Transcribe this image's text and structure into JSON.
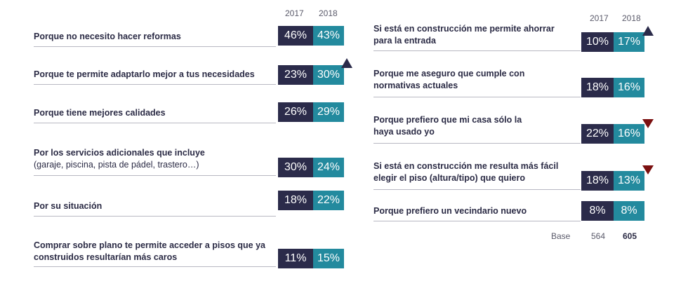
{
  "chart_data": [
    {
      "type": "table",
      "columns": [
        "2017",
        "2018"
      ],
      "rows": [
        {
          "label": "Porque no necesito hacer reformas",
          "sub": "",
          "v2017": "46%",
          "v2018": "43%",
          "trend": ""
        },
        {
          "label": "Porque te permite adaptarlo mejor a tus necesidades",
          "sub": "",
          "v2017": "23%",
          "v2018": "30%",
          "trend": "up"
        },
        {
          "label": "Porque tiene mejores calidades",
          "sub": "",
          "v2017": "26%",
          "v2018": "29%",
          "trend": ""
        },
        {
          "label": "Por los servicios adicionales que incluye",
          "sub": "(garaje, piscina, pista de pádel, trastero…)",
          "v2017": "30%",
          "v2018": "24%",
          "trend": ""
        },
        {
          "label": "Por su situación",
          "sub": "",
          "v2017": "18%",
          "v2018": "22%",
          "trend": ""
        },
        {
          "label": "Comprar sobre plano te permite acceder a pisos que ya construidos resultarían más caros",
          "sub": "",
          "v2017": "11%",
          "v2018": "15%",
          "trend": ""
        }
      ]
    },
    {
      "type": "table",
      "columns": [
        "2017",
        "2018"
      ],
      "rows": [
        {
          "label": "Si está en construcción me permite ahorrar para la entrada",
          "v2017": "10%",
          "v2018": "17%",
          "trend": "up"
        },
        {
          "label": "Porque me aseguro que cumple con normativas actuales",
          "v2017": "18%",
          "v2018": "16%",
          "trend": ""
        },
        {
          "label": "Porque prefiero que mi casa sólo la haya usado yo",
          "v2017": "22%",
          "v2018": "16%",
          "trend": "down"
        },
        {
          "label": "Si está en construcción me resulta más fácil elegir el piso (altura/tipo) que quiero",
          "v2017": "18%",
          "v2018": "13%",
          "trend": "down"
        },
        {
          "label": "Porque prefiero un vecindario nuevo",
          "v2017": "8%",
          "v2018": "8%",
          "trend": ""
        }
      ],
      "base": {
        "label": "Base",
        "v2017": "564",
        "v2018": "605"
      }
    }
  ],
  "colors": {
    "y2017": "#2b2b4a",
    "y2018": "#238a9e",
    "up_arrow": "#2b2b4a",
    "down_arrow": "#7b1010"
  }
}
